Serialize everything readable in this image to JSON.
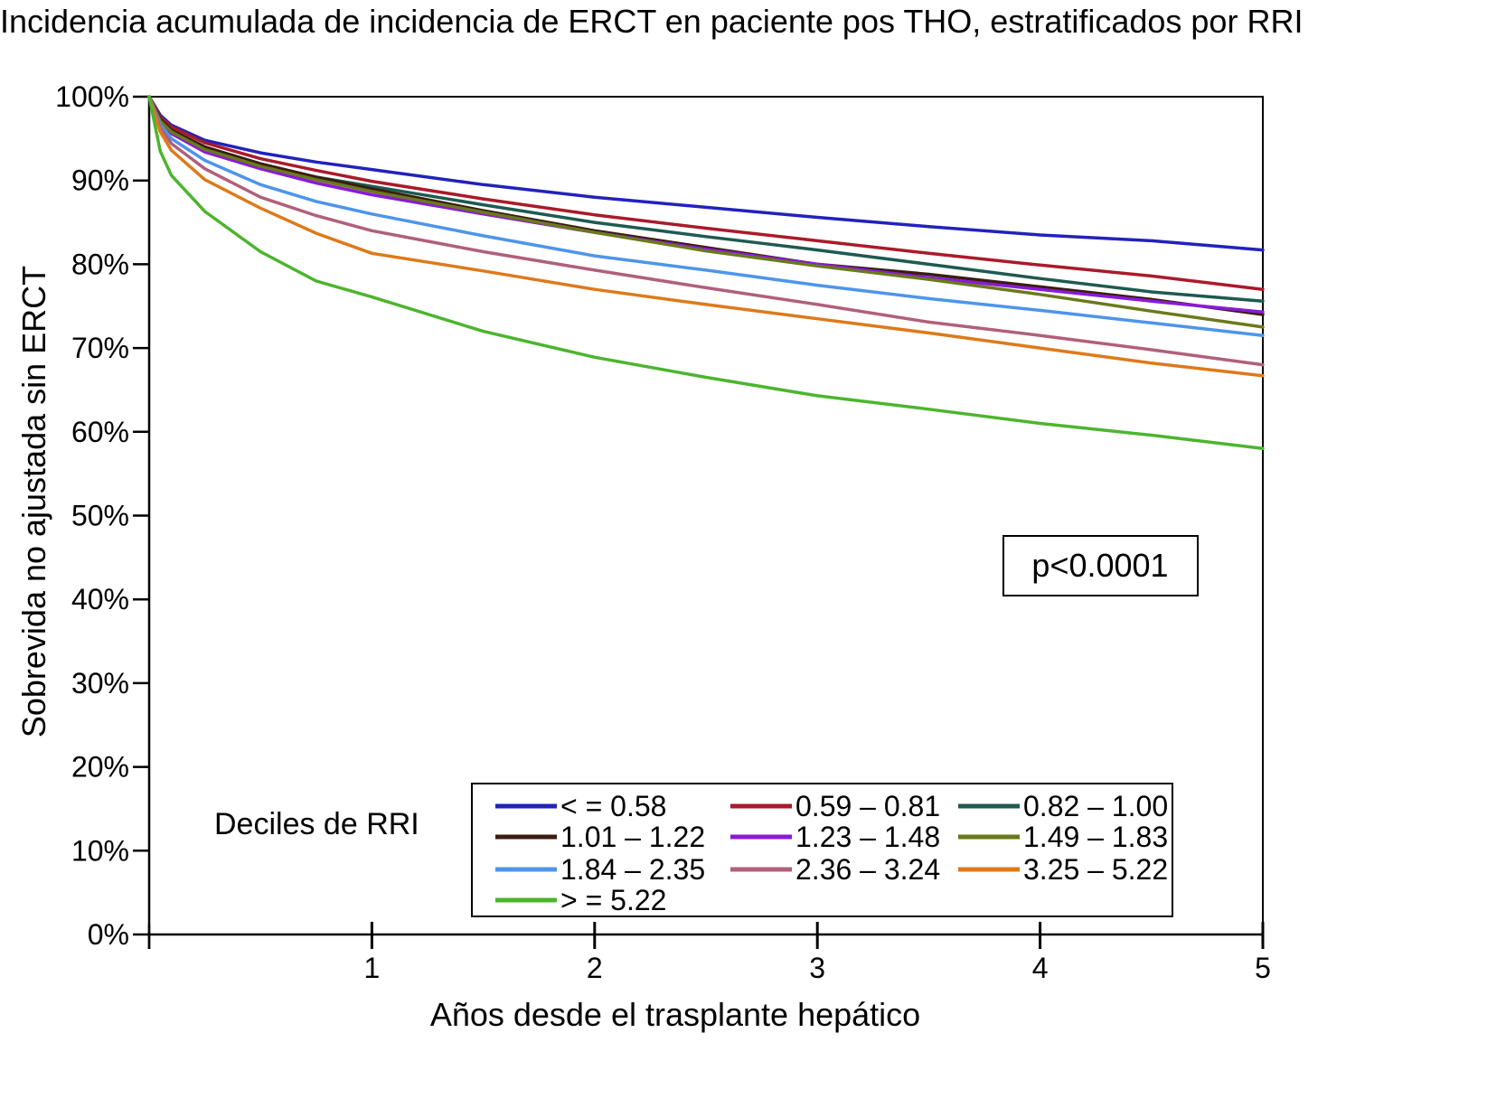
{
  "chart_data": {
    "type": "line",
    "title": "Incidencia acumulada de incidencia de ERCT en paciente pos THO, estratificados por RRI",
    "xlabel": "Años desde el trasplante hepático",
    "ylabel": "Sobrevida no ajustada sin ERCT",
    "xlim": [
      0,
      5
    ],
    "ylim": [
      0,
      100
    ],
    "x_ticks": [
      1,
      2,
      3,
      4,
      5
    ],
    "y_ticks": [
      0,
      10,
      20,
      30,
      40,
      50,
      60,
      70,
      80,
      90,
      100
    ],
    "y_tick_labels": [
      "0%",
      "10%",
      "20%",
      "30%",
      "40%",
      "50%",
      "60%",
      "70%",
      "80%",
      "90%",
      "100%"
    ],
    "grid": false,
    "annotation": "p<0.0001",
    "legend_title": "Deciles de RRI",
    "legend_position": "bottom-center",
    "x": [
      0,
      0.05,
      0.1,
      0.25,
      0.5,
      0.75,
      1,
      1.5,
      2,
      2.5,
      3,
      3.5,
      4,
      4.5,
      5
    ],
    "series": [
      {
        "name": "< = 0.58",
        "color": "#2222bb",
        "values": [
          100,
          97.8,
          96.6,
          94.8,
          93.3,
          92.2,
          91.3,
          89.5,
          88.0,
          86.8,
          85.6,
          84.5,
          83.5,
          82.8,
          81.7
        ]
      },
      {
        "name": "0.59 – 0.81",
        "color": "#aa1a2a",
        "values": [
          100,
          97.6,
          96.4,
          94.5,
          92.6,
          91.2,
          89.9,
          87.8,
          85.9,
          84.3,
          82.8,
          81.3,
          79.9,
          78.6,
          77.0
        ]
      },
      {
        "name": "0.82 – 1.00",
        "color": "#1e5a50",
        "values": [
          100,
          97.3,
          96.0,
          94.0,
          91.9,
          90.4,
          89.3,
          87.1,
          85.0,
          83.3,
          81.7,
          80.0,
          78.3,
          76.7,
          75.6
        ]
      },
      {
        "name": "1.01 – 1.22",
        "color": "#3a1c10",
        "values": [
          100,
          97.3,
          96.0,
          94.0,
          92.0,
          90.4,
          89.0,
          86.4,
          84.0,
          82.0,
          80.0,
          78.8,
          77.3,
          75.8,
          74.0
        ]
      },
      {
        "name": "1.23 – 1.48",
        "color": "#8a1ad6",
        "values": [
          100,
          97.0,
          95.6,
          93.4,
          91.4,
          89.7,
          88.3,
          86.0,
          83.8,
          81.8,
          80.0,
          78.4,
          77.0,
          75.6,
          74.3
        ]
      },
      {
        "name": "1.49 – 1.83",
        "color": "#6a7a1c",
        "values": [
          100,
          97.1,
          95.8,
          93.7,
          91.7,
          90.1,
          88.7,
          86.2,
          83.8,
          81.6,
          79.8,
          78.2,
          76.4,
          74.4,
          72.5
        ]
      },
      {
        "name": "1.84 – 2.35",
        "color": "#4d95ea",
        "values": [
          100,
          96.7,
          95.0,
          92.4,
          89.5,
          87.5,
          86.0,
          83.4,
          81.0,
          79.3,
          77.5,
          75.9,
          74.5,
          73.0,
          71.5
        ]
      },
      {
        "name": "2.36 – 3.24",
        "color": "#b0607a",
        "values": [
          100,
          96.3,
          94.4,
          91.4,
          88.0,
          85.8,
          84.0,
          81.5,
          79.3,
          77.2,
          75.2,
          73.1,
          71.5,
          69.8,
          68.0
        ]
      },
      {
        "name": "3.25 – 5.22",
        "color": "#dd7a1a",
        "values": [
          100,
          95.8,
          93.6,
          90.1,
          86.7,
          83.7,
          81.3,
          79.2,
          77.0,
          75.2,
          73.5,
          71.8,
          70.0,
          68.2,
          66.7
        ]
      },
      {
        "name": "> = 5.22",
        "color": "#4cb52e",
        "values": [
          100,
          93.5,
          90.6,
          86.3,
          81.5,
          78.0,
          76.1,
          72.0,
          68.9,
          66.5,
          64.3,
          62.7,
          61.0,
          59.6,
          58.0
        ]
      }
    ]
  }
}
